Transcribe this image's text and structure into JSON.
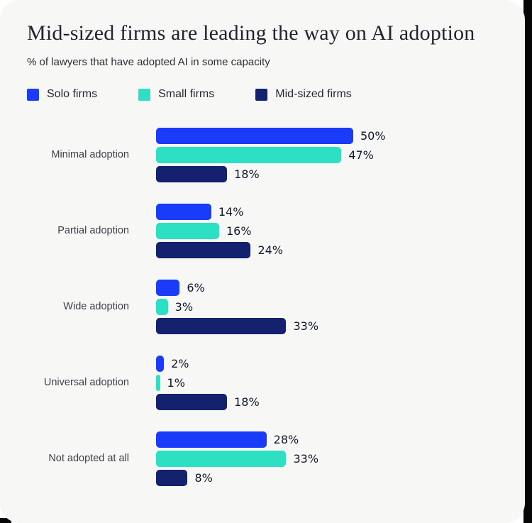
{
  "header": {
    "title": "Mid-sized firms are leading the way on AI adoption",
    "subtitle": "% of lawyers that have adopted AI in some capacity"
  },
  "legend": {
    "items": [
      {
        "label": "Solo firms",
        "color": "#1A3BF7"
      },
      {
        "label": "Small firms",
        "color": "#2DE0C3"
      },
      {
        "label": "Mid-sized firms",
        "color": "#14216E"
      }
    ]
  },
  "chart_data": {
    "type": "bar",
    "orientation": "horizontal",
    "title": "Mid-sized firms are leading the way on AI adoption",
    "subtitle": "% of lawyers that have adopted AI in some capacity",
    "categories": [
      "Minimal adoption",
      "Partial adoption",
      "Wide adoption",
      "Universal adoption",
      "Not adopted at all"
    ],
    "series": [
      {
        "name": "Solo firms",
        "color": "#1A3BF7",
        "values": [
          50,
          14,
          6,
          2,
          28
        ]
      },
      {
        "name": "Small firms",
        "color": "#2DE0C3",
        "values": [
          47,
          16,
          3,
          1,
          33
        ]
      },
      {
        "name": "Mid-sized firms",
        "color": "#14216E",
        "values": [
          18,
          24,
          33,
          18,
          8
        ]
      }
    ],
    "value_suffix": "%",
    "value_labels": true,
    "xlim": [
      0,
      50
    ],
    "grid": false,
    "legend_position": "top",
    "background_color": "#F7F7F6"
  }
}
